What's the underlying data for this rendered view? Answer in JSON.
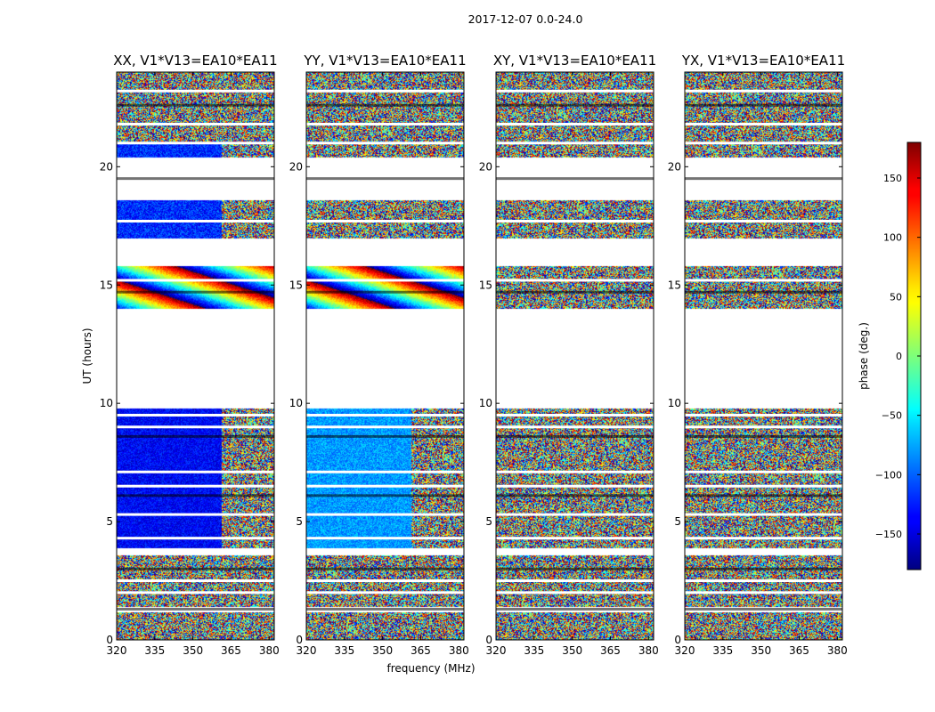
{
  "chart_data": {
    "type": "heatmap",
    "suptitle": "2017-12-07 0.0-24.0",
    "xlabel": "frequency (MHz)",
    "ylabel": "UT (hours)",
    "x_range": [
      320,
      382
    ],
    "x_ticks": [
      320,
      335,
      350,
      365,
      380
    ],
    "y_range": [
      0,
      24
    ],
    "y_ticks": [
      0,
      5,
      10,
      15,
      20
    ],
    "colormap": "jet",
    "colorbar": {
      "label": "phase (deg.)",
      "range": [
        -180,
        180
      ],
      "ticks": [
        150,
        100,
        50,
        0,
        -50,
        -100,
        -150
      ],
      "tick_labels": [
        "150",
        "100",
        "50",
        "0",
        "−50",
        "−100",
        "−150"
      ]
    },
    "panels": [
      {
        "title": "XX, V1*V13=EA10*EA11",
        "polarization": "XX",
        "base_phase_early": -135,
        "base_phase_late": -120
      },
      {
        "title": "YY, V1*V13=EA10*EA11",
        "polarization": "YY",
        "base_phase_early": -80,
        "base_phase_late": -70
      },
      {
        "title": "XY, V1*V13=EA10*EA11",
        "polarization": "XY",
        "base_phase_early": null,
        "base_phase_late": null
      },
      {
        "title": "YX, V1*V13=EA10*EA11",
        "polarization": "YX",
        "base_phase_early": null,
        "base_phase_late": null
      }
    ],
    "data_segments_ut_hours": [
      [
        0,
        1.2
      ],
      [
        1.4,
        3.6
      ],
      [
        3.9,
        9.8
      ],
      [
        14.0,
        15.8
      ],
      [
        17.0,
        18.6
      ],
      [
        20.4,
        24.0
      ]
    ],
    "gap_lines_ut_hours": [
      1.3,
      2.0,
      2.5,
      3.0,
      4.3,
      5.3,
      6.1,
      6.5,
      7.1,
      8.6,
      9.0,
      9.5,
      14.7,
      15.2,
      17.7,
      19.5,
      21.0,
      21.8,
      22.6,
      23.2
    ]
  }
}
